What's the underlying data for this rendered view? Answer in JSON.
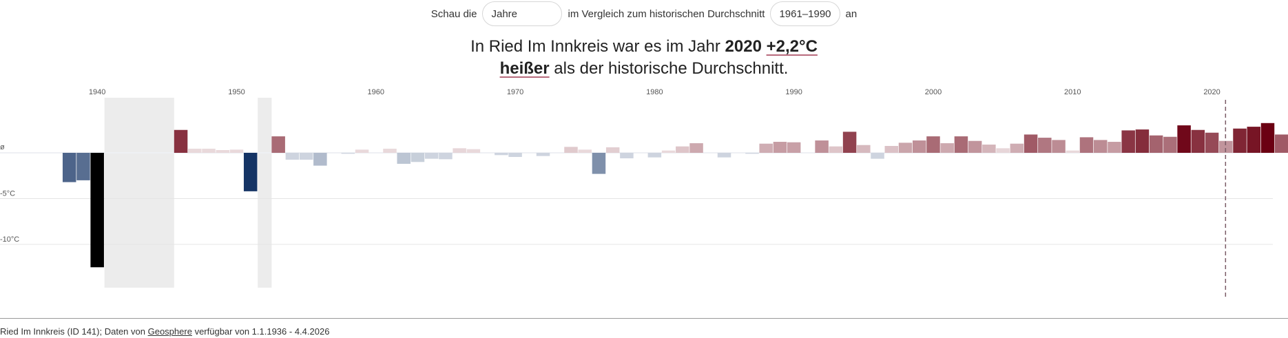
{
  "controls": {
    "prefix": "Schau die",
    "period_select": "Jahre",
    "middle": "im Vergleich zum historischen Durchschnitt",
    "reference_select": "1961–1990",
    "suffix": "an"
  },
  "headline": {
    "part1": "In Ried Im Innkreis war es im Jahr",
    "year": "2020",
    "delta": "+2,2°C",
    "word": "heißer",
    "part2": "als der historische Durchschnitt."
  },
  "footer": {
    "station": "Ried Im Innkreis (ID 141); Daten von",
    "source_link": "Geosphere",
    "availability": "verfügbar von 1.1.1936 - 4.4.2026"
  },
  "chart_data": {
    "type": "bar",
    "ylim": [
      -14.5,
      3.0
    ],
    "y_ticks": [
      {
        "value": 0,
        "label": "ø"
      },
      {
        "value": -5,
        "label": "-5°C"
      },
      {
        "value": -10,
        "label": "-10°C"
      }
    ],
    "x_tick_labels": [
      "1940",
      "1950",
      "1960",
      "1970",
      "1980",
      "1990",
      "2000",
      "2010",
      "2020"
    ],
    "highlight_year": 2020,
    "missing_ranges": [
      [
        1941,
        1945
      ],
      [
        1952,
        1952
      ]
    ],
    "colors": {
      "warm": "#6b0012",
      "cold": "#0a2a5e",
      "extreme_cold": "#000000",
      "missing": "#ececec",
      "marker": "#7a5a66"
    },
    "years": [
      1936,
      1937,
      1938,
      1939,
      1940,
      1941,
      1942,
      1943,
      1944,
      1945,
      1946,
      1947,
      1948,
      1949,
      1950,
      1951,
      1952,
      1953,
      1954,
      1955,
      1956,
      1957,
      1958,
      1959,
      1960,
      1961,
      1962,
      1963,
      1964,
      1965,
      1966,
      1967,
      1968,
      1969,
      1970,
      1971,
      1972,
      1973,
      1974,
      1975,
      1976,
      1977,
      1978,
      1979,
      1980,
      1981,
      1982,
      1983,
      1984,
      1985,
      1986,
      1987,
      1988,
      1989,
      1990,
      1991,
      1992,
      1993,
      1994,
      1995,
      1996,
      1997,
      1998,
      1999,
      2000,
      2001,
      2002,
      2003,
      2004,
      2005,
      2006,
      2007,
      2008,
      2009,
      2010,
      2011,
      2012,
      2013,
      2014,
      2015,
      2016,
      2017,
      2018,
      2019,
      2020,
      2021,
      2022,
      2023,
      2024,
      2025
    ],
    "values": [
      null,
      null,
      -3.2,
      -3.0,
      -12.5,
      null,
      null,
      null,
      null,
      null,
      2.5,
      0.45,
      0.45,
      0.3,
      0.35,
      -4.2,
      null,
      1.8,
      -0.75,
      -0.75,
      -1.4,
      0.0,
      -0.1,
      0.35,
      0.0,
      0.45,
      -1.2,
      -1.0,
      -0.65,
      -0.7,
      0.5,
      0.4,
      0.0,
      -0.25,
      -0.45,
      0.0,
      -0.35,
      0.0,
      0.65,
      0.35,
      -2.3,
      0.6,
      -0.6,
      0.0,
      -0.5,
      0.25,
      0.7,
      1.05,
      0.0,
      -0.5,
      0.0,
      -0.1,
      1.0,
      1.2,
      1.15,
      0.0,
      1.35,
      0.7,
      2.3,
      0.85,
      -0.65,
      0.75,
      1.1,
      1.35,
      1.8,
      1.05,
      1.8,
      1.3,
      0.9,
      0.5,
      1.0,
      2.0,
      1.65,
      1.4,
      0.25,
      1.7,
      1.4,
      1.2,
      2.45,
      2.55,
      1.9,
      1.75,
      3.0,
      2.5,
      2.2,
      1.3,
      2.65,
      2.85,
      3.25,
      2.0
    ]
  }
}
